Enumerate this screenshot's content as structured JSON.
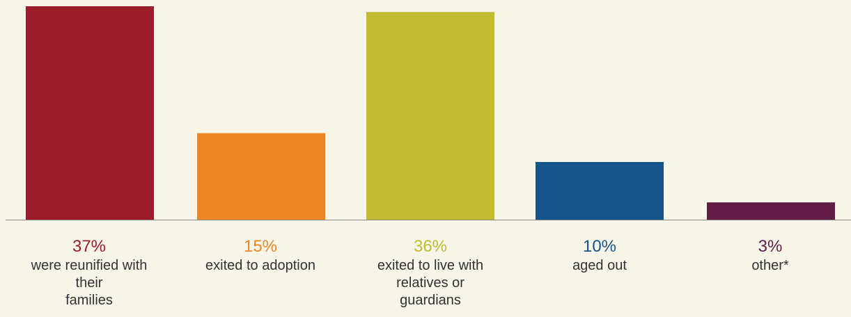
{
  "chart_data": {
    "type": "bar",
    "categories": [
      "were reunified with their families",
      "exited to adoption",
      "exited to live with relatives or guardians",
      "aged out",
      "other*"
    ],
    "values": [
      37,
      15,
      36,
      10,
      3
    ],
    "value_labels": [
      "37%",
      "15%",
      "36%",
      "10%",
      "3%"
    ],
    "description_lines": [
      [
        "were reunified with",
        "their",
        "families"
      ],
      [
        "exited to adoption"
      ],
      [
        "exited to live with",
        "relatives or",
        "guardians"
      ],
      [
        "aged out"
      ],
      [
        "other*"
      ]
    ],
    "colors": [
      "#9b1c2a",
      "#ef8624",
      "#c1bb33",
      "#15558a",
      "#611d45"
    ],
    "axis_color": "#8a8a8a",
    "background": "#f7f6e8",
    "title": "",
    "xlabel": "",
    "ylabel": "",
    "ylim": [
      0,
      37
    ],
    "grid": false,
    "legend": "none"
  }
}
